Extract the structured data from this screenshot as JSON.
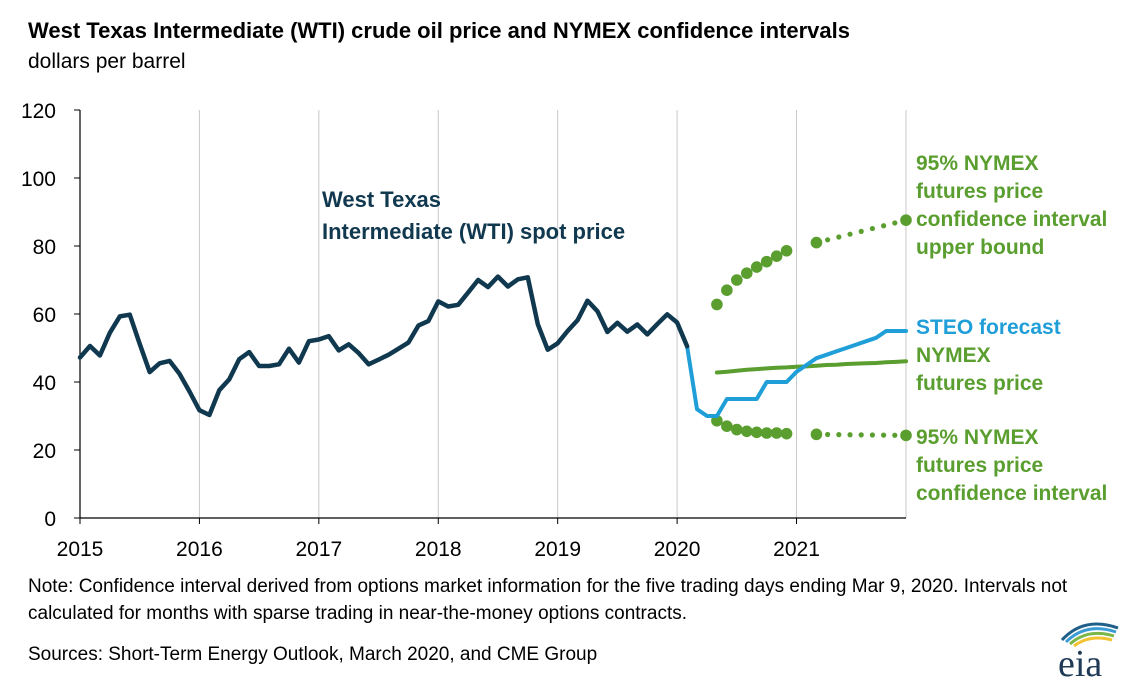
{
  "header": {
    "title": "West Texas Intermediate (WTI) crude oil price and NYMEX confidence intervals",
    "subtitle": "dollars per barrel"
  },
  "footer": {
    "note": "Note: Confidence interval derived from options market information for the five trading days ending Mar 9, 2020. Intervals not calculated for months with sparse trading in near-the-money options contracts.",
    "sources": "Sources: Short-Term Energy Outlook, March 2020, and CME Group"
  },
  "logo": {
    "text": "eia"
  },
  "chart_data": {
    "type": "line",
    "xlim": [
      "2015-01",
      "2021-12"
    ],
    "ylim": [
      0,
      120
    ],
    "yticks": [
      0,
      20,
      40,
      60,
      80,
      100,
      120
    ],
    "xticks": [
      "2015",
      "2016",
      "2017",
      "2018",
      "2019",
      "2020",
      "2021"
    ],
    "grid": {
      "vertical": true,
      "horizontal": false
    },
    "colors": {
      "wti": "#10384f",
      "steo": "#1f9ed8",
      "nymex": "#5a9e2f"
    },
    "series": [
      {
        "name": "West Texas Intermediate (WTI) spot price",
        "label": [
          "West Texas",
          "Intermediate (WTI) spot price"
        ],
        "color": "#10384f",
        "x": [
          "2015-01",
          "2015-02",
          "2015-03",
          "2015-04",
          "2015-05",
          "2015-06",
          "2015-07",
          "2015-08",
          "2015-09",
          "2015-10",
          "2015-11",
          "2015-12",
          "2016-01",
          "2016-02",
          "2016-03",
          "2016-04",
          "2016-05",
          "2016-06",
          "2016-07",
          "2016-08",
          "2016-09",
          "2016-10",
          "2016-11",
          "2016-12",
          "2017-01",
          "2017-02",
          "2017-03",
          "2017-04",
          "2017-05",
          "2017-06",
          "2017-07",
          "2017-08",
          "2017-09",
          "2017-10",
          "2017-11",
          "2017-12",
          "2018-01",
          "2018-02",
          "2018-03",
          "2018-04",
          "2018-05",
          "2018-06",
          "2018-07",
          "2018-08",
          "2018-09",
          "2018-10",
          "2018-11",
          "2018-12",
          "2019-01",
          "2019-02",
          "2019-03",
          "2019-04",
          "2019-05",
          "2019-06",
          "2019-07",
          "2019-08",
          "2019-09",
          "2019-10",
          "2019-11",
          "2019-12",
          "2020-01",
          "2020-02"
        ],
        "values": [
          47.2,
          50.6,
          47.8,
          54.5,
          59.3,
          59.8,
          51.2,
          42.9,
          45.5,
          46.2,
          42.4,
          37.2,
          31.7,
          30.3,
          37.6,
          40.8,
          46.7,
          48.8,
          44.7,
          44.7,
          45.2,
          49.8,
          45.7,
          52.0,
          52.5,
          53.5,
          49.3,
          51.1,
          48.5,
          45.2,
          46.6,
          48.0,
          49.8,
          51.6,
          56.6,
          57.9,
          63.7,
          62.2,
          62.7,
          66.3,
          70.0,
          67.9,
          71.0,
          68.1,
          70.2,
          70.8,
          57.0,
          49.5,
          51.4,
          55.0,
          58.2,
          63.9,
          60.8,
          54.7,
          57.4,
          54.8,
          56.9,
          54.0,
          57.0,
          59.9,
          57.5,
          50.5
        ]
      },
      {
        "name": "STEO forecast",
        "label": [
          "STEO forecast"
        ],
        "color": "#1f9ed8",
        "x": [
          "2020-02",
          "2020-03",
          "2020-04",
          "2020-05",
          "2020-06",
          "2020-07",
          "2020-08",
          "2020-09",
          "2020-10",
          "2020-11",
          "2020-12",
          "2021-01",
          "2021-02",
          "2021-03",
          "2021-04",
          "2021-05",
          "2021-06",
          "2021-07",
          "2021-08",
          "2021-09",
          "2021-10",
          "2021-11",
          "2021-12"
        ],
        "values": [
          50.5,
          32.0,
          30.0,
          30.0,
          35.0,
          35.0,
          35.0,
          35.0,
          40.0,
          40.0,
          40.0,
          43.0,
          45.0,
          47.0,
          48.0,
          49.0,
          50.0,
          51.0,
          52.0,
          53.0,
          55.0,
          55.0,
          55.0
        ]
      },
      {
        "name": "NYMEX futures price",
        "label": [
          "NYMEX",
          "futures price"
        ],
        "color": "#5a9e2f",
        "x": [
          "2020-05",
          "2020-06",
          "2020-07",
          "2020-08",
          "2020-09",
          "2020-10",
          "2020-11",
          "2020-12",
          "2021-01",
          "2021-02",
          "2021-03",
          "2021-04",
          "2021-05",
          "2021-06",
          "2021-07",
          "2021-08",
          "2021-09",
          "2021-10",
          "2021-11",
          "2021-12"
        ],
        "values": [
          42.8,
          43.0,
          43.3,
          43.6,
          43.8,
          44.0,
          44.2,
          44.3,
          44.5,
          44.6,
          44.8,
          45.0,
          45.1,
          45.3,
          45.4,
          45.5,
          45.6,
          45.8,
          45.9,
          46.1
        ]
      },
      {
        "name": "95% NYMEX futures price confidence interval upper bound",
        "label": [
          "95% NYMEX",
          "futures price",
          "confidence interval",
          "upper bound"
        ],
        "color": "#5a9e2f",
        "style": "dotted",
        "x": [
          "2020-05",
          "2020-06",
          "2020-07",
          "2020-08",
          "2020-09",
          "2020-10",
          "2020-11",
          "2020-12",
          "2021-03",
          "2021-12"
        ],
        "values": [
          62.8,
          67.0,
          70.0,
          72.0,
          73.8,
          75.4,
          77.0,
          78.6,
          81.0,
          87.6
        ]
      },
      {
        "name": "95% NYMEX futures price confidence interval",
        "label": [
          "95% NYMEX",
          "futures price",
          "confidence interval"
        ],
        "color": "#5a9e2f",
        "style": "dotted",
        "x": [
          "2020-05",
          "2020-06",
          "2020-07",
          "2020-08",
          "2020-09",
          "2020-10",
          "2020-11",
          "2020-12",
          "2021-03",
          "2021-12"
        ],
        "values": [
          28.6,
          27.0,
          26.0,
          25.5,
          25.2,
          25.0,
          25.0,
          24.8,
          24.6,
          24.3
        ]
      }
    ]
  }
}
